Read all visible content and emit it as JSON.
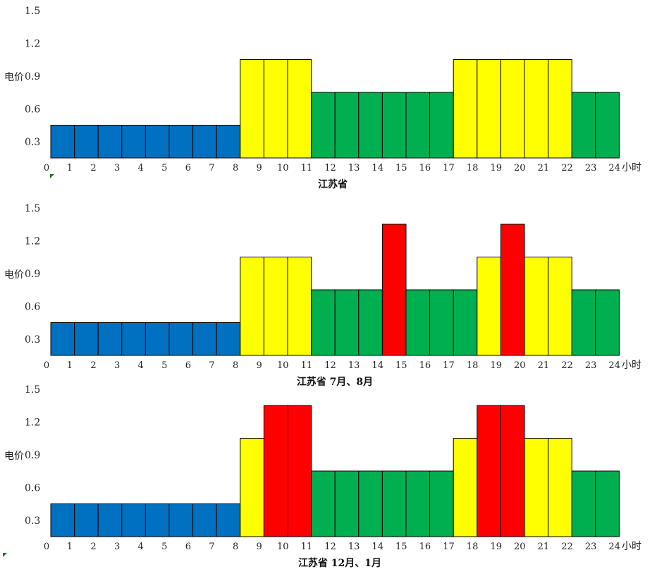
{
  "colors": {
    "off_peak": "#0070C0",
    "flat": "#00B050",
    "peak": "#FFFF00",
    "critical_peak": "#FF0000"
  },
  "chart_data": [
    {
      "type": "bar",
      "title": "江苏省",
      "ylabel": "电价",
      "xlabel": "小时",
      "ylim": [
        0.15,
        1.5
      ],
      "yticks": [
        "0.3",
        "0.6",
        "0.9",
        "1.2",
        "1.5"
      ],
      "x_origin_label": "0",
      "categories": [
        "1",
        "2",
        "3",
        "4",
        "5",
        "6",
        "7",
        "8",
        "9",
        "10",
        "11",
        "12",
        "13",
        "14",
        "15",
        "16",
        "17",
        "18",
        "19",
        "20",
        "21",
        "22",
        "23",
        "24"
      ],
      "values": [
        0.45,
        0.45,
        0.45,
        0.45,
        0.45,
        0.45,
        0.45,
        0.45,
        1.05,
        1.05,
        1.05,
        0.75,
        0.75,
        0.75,
        0.75,
        0.75,
        0.75,
        1.05,
        1.05,
        1.05,
        1.05,
        1.05,
        0.75,
        0.75
      ],
      "bar_colors": [
        "off_peak",
        "off_peak",
        "off_peak",
        "off_peak",
        "off_peak",
        "off_peak",
        "off_peak",
        "off_peak",
        "peak",
        "peak",
        "peak",
        "flat",
        "flat",
        "flat",
        "flat",
        "flat",
        "flat",
        "peak",
        "peak",
        "peak",
        "peak",
        "peak",
        "flat",
        "flat"
      ]
    },
    {
      "type": "bar",
      "title": "江苏省 7月、8月",
      "ylabel": "电价",
      "xlabel": "小时",
      "ylim": [
        0.15,
        1.5
      ],
      "yticks": [
        "0.3",
        "0.6",
        "0.9",
        "1.2",
        "1.5"
      ],
      "x_origin_label": "0",
      "categories": [
        "1",
        "2",
        "3",
        "4",
        "5",
        "6",
        "7",
        "8",
        "9",
        "10",
        "11",
        "12",
        "13",
        "14",
        "15",
        "16",
        "17",
        "18",
        "19",
        "20",
        "21",
        "22",
        "23",
        "24"
      ],
      "values": [
        0.45,
        0.45,
        0.45,
        0.45,
        0.45,
        0.45,
        0.45,
        0.45,
        1.05,
        1.05,
        1.05,
        0.75,
        0.75,
        0.75,
        1.35,
        0.75,
        0.75,
        0.75,
        1.05,
        1.35,
        1.05,
        1.05,
        0.75,
        0.75
      ],
      "bar_colors": [
        "off_peak",
        "off_peak",
        "off_peak",
        "off_peak",
        "off_peak",
        "off_peak",
        "off_peak",
        "off_peak",
        "peak",
        "peak",
        "peak",
        "flat",
        "flat",
        "flat",
        "critical_peak",
        "flat",
        "flat",
        "flat",
        "peak",
        "critical_peak",
        "peak",
        "peak",
        "flat",
        "flat"
      ]
    },
    {
      "type": "bar",
      "title": "江苏省 12月、1月",
      "ylabel": "电价",
      "xlabel": "小时",
      "ylim": [
        0.15,
        1.5
      ],
      "yticks": [
        "0.3",
        "0.6",
        "0.9",
        "1.2",
        "1.5"
      ],
      "x_origin_label": "0",
      "categories": [
        "1",
        "2",
        "3",
        "4",
        "5",
        "6",
        "7",
        "8",
        "9",
        "10",
        "11",
        "12",
        "13",
        "14",
        "15",
        "16",
        "17",
        "18",
        "19",
        "20",
        "21",
        "22",
        "23",
        "24"
      ],
      "values": [
        0.45,
        0.45,
        0.45,
        0.45,
        0.45,
        0.45,
        0.45,
        0.45,
        1.05,
        1.35,
        1.35,
        0.75,
        0.75,
        0.75,
        0.75,
        0.75,
        0.75,
        1.05,
        1.35,
        1.35,
        1.05,
        1.05,
        0.75,
        0.75
      ],
      "bar_colors": [
        "off_peak",
        "off_peak",
        "off_peak",
        "off_peak",
        "off_peak",
        "off_peak",
        "off_peak",
        "off_peak",
        "peak",
        "critical_peak",
        "critical_peak",
        "flat",
        "flat",
        "flat",
        "flat",
        "flat",
        "flat",
        "peak",
        "critical_peak",
        "critical_peak",
        "peak",
        "peak",
        "flat",
        "flat"
      ]
    }
  ]
}
